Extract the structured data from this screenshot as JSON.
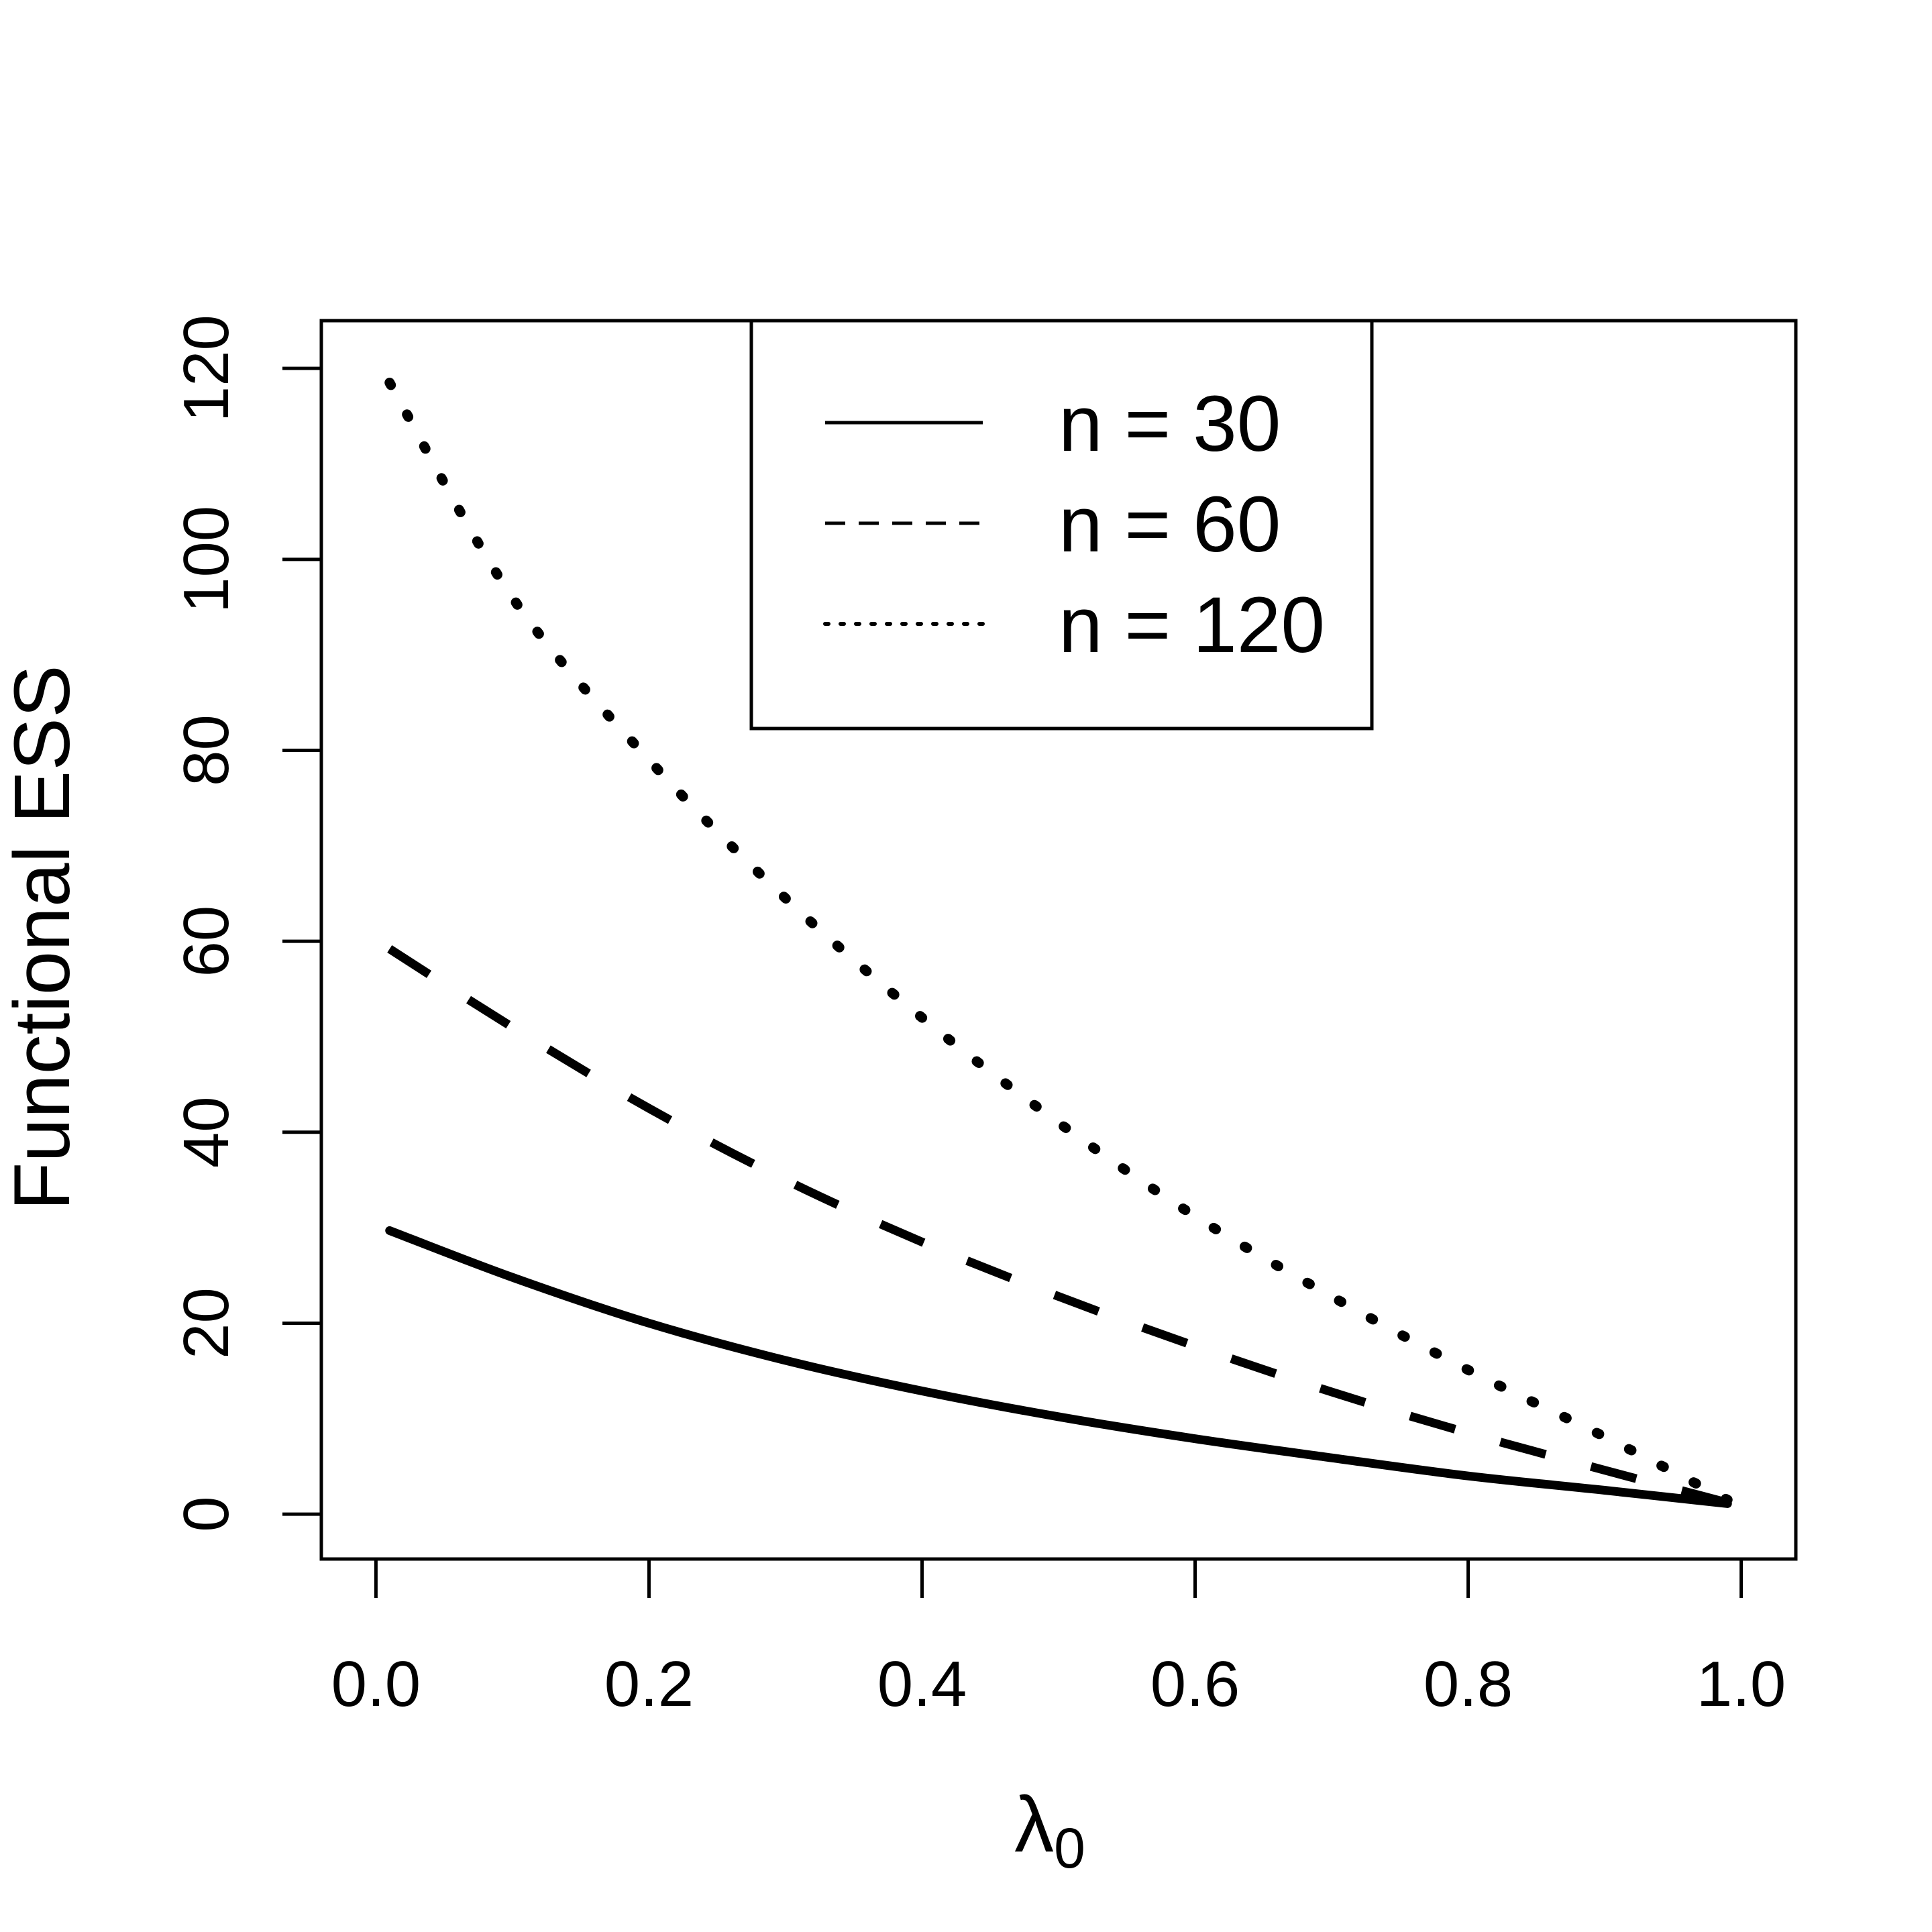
{
  "chart_data": {
    "type": "line",
    "xlabel": "λ",
    "xlabel_subscript": "0",
    "ylabel": "Functional ESS",
    "xlim": [
      -0.04,
      1.04
    ],
    "ylim": [
      -4.7,
      125
    ],
    "x_ticks": [
      0.0,
      0.2,
      0.4,
      0.6,
      0.8,
      1.0
    ],
    "x_tick_labels": [
      "0.0",
      "0.2",
      "0.4",
      "0.6",
      "0.8",
      "1.0"
    ],
    "y_ticks": [
      0,
      20,
      40,
      60,
      80,
      100,
      120
    ],
    "y_tick_labels": [
      "0",
      "20",
      "40",
      "60",
      "80",
      "100",
      "120"
    ],
    "grid": false,
    "legend_position": "top-center",
    "x": [
      0.01,
      0.1,
      0.2,
      0.3,
      0.4,
      0.5,
      0.6,
      0.7,
      0.8,
      0.9,
      0.99
    ],
    "series": [
      {
        "name": "n = 30",
        "style": "solid",
        "values": [
          29.7,
          24.8,
          20.0,
          16.1,
          12.9,
          10.2,
          7.9,
          5.9,
          4.0,
          2.5,
          1.1
        ]
      },
      {
        "name": "n = 60",
        "style": "dashed",
        "values": [
          59.2,
          51.0,
          42.5,
          35.0,
          28.5,
          22.8,
          17.6,
          12.8,
          8.5,
          4.6,
          1.2
        ]
      },
      {
        "name": "n = 120",
        "style": "dotted",
        "values": [
          118.5,
          96.0,
          79.0,
          64.5,
          52.0,
          41.0,
          31.2,
          22.8,
          15.1,
          8.1,
          1.5
        ]
      }
    ]
  }
}
